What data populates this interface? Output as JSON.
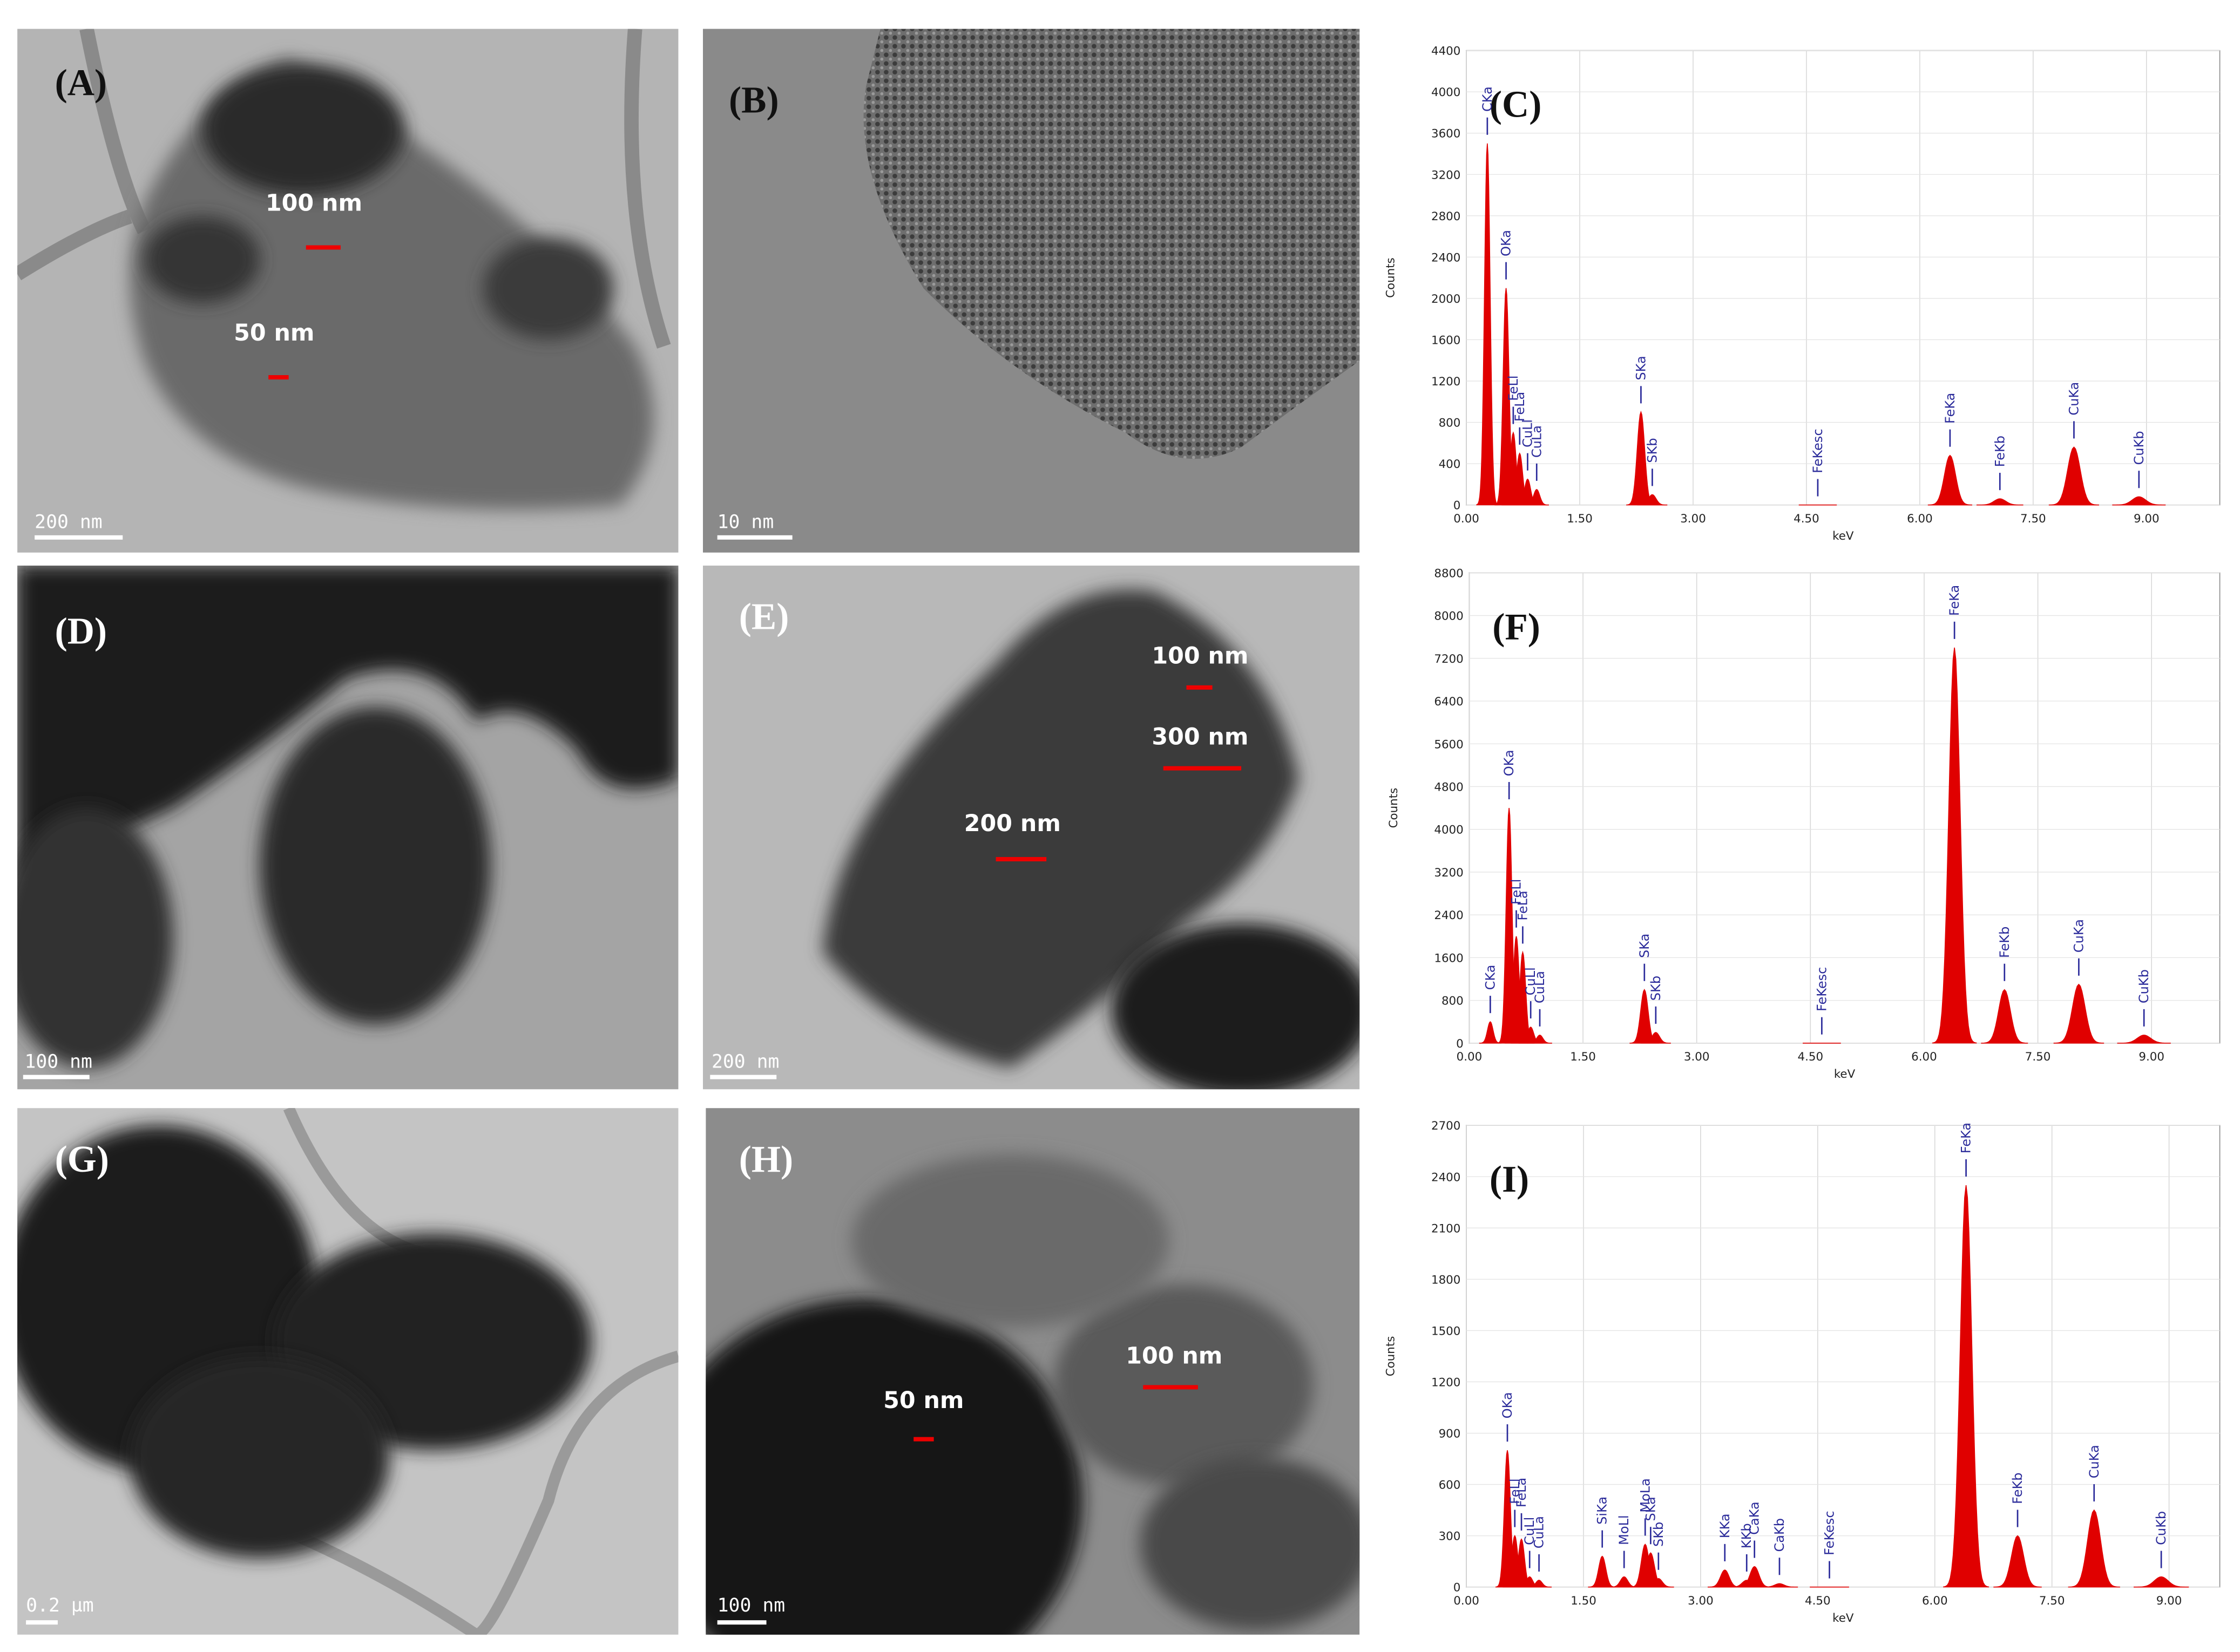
{
  "panels": [
    {
      "label": "(A)",
      "scale_bar": "200 nm",
      "annotations": [
        "100 nm",
        "50 nm"
      ]
    },
    {
      "label": "(B)",
      "scale_bar": "10 nm"
    },
    {
      "label": "(D)",
      "scale_bar": "100 nm"
    },
    {
      "label": "(E)",
      "scale_bar": "200 nm",
      "annotations": [
        "100 nm",
        "300 nm",
        "200 nm"
      ]
    },
    {
      "label": "(G)",
      "scale_bar": "0.2 µm"
    },
    {
      "label": "(H)",
      "scale_bar": "100 nm",
      "annotations": [
        "100 nm",
        "50 nm"
      ]
    }
  ],
  "spectra": [
    {
      "label": "(C)",
      "y_label": "Counts",
      "x_label": "keV",
      "color": "#e00000",
      "xlim": [
        0,
        9.97
      ],
      "ylim": [
        0,
        4400
      ],
      "xticks": [
        {
          "value": 0,
          "label": "0.00"
        },
        {
          "value": 1.5,
          "label": "1.50"
        },
        {
          "value": 3,
          "label": "3.00"
        },
        {
          "value": 4.5,
          "label": "4.50"
        },
        {
          "value": 6,
          "label": "6.00"
        },
        {
          "value": 7.5,
          "label": "7.50"
        },
        {
          "value": 9,
          "label": "9.00"
        }
      ],
      "yticks": [
        0,
        400,
        800,
        1200,
        1600,
        2000,
        2400,
        2800,
        3200,
        3600,
        4000,
        4400
      ],
      "peaks": [
        {
          "label": "CKa",
          "x": 0.277,
          "y": 3500
        },
        {
          "label": "OKa",
          "x": 0.525,
          "y": 2100
        },
        {
          "label": "FeLl",
          "x": 0.62,
          "y": 700
        },
        {
          "label": "FeLa",
          "x": 0.705,
          "y": 500
        },
        {
          "label": "CuLl",
          "x": 0.81,
          "y": 250
        },
        {
          "label": "CuLa",
          "x": 0.93,
          "y": 150
        },
        {
          "label": "SKa",
          "x": 2.31,
          "y": 900
        },
        {
          "label": "SKb",
          "x": 2.46,
          "y": 100
        },
        {
          "label": "FeKesc",
          "x": 4.65,
          "y": 0
        },
        {
          "label": "FeKa",
          "x": 6.4,
          "y": 480
        },
        {
          "label": "FeKb",
          "x": 7.06,
          "y": 60
        },
        {
          "label": "CuKa",
          "x": 8.04,
          "y": 560
        },
        {
          "label": "CuKb",
          "x": 8.9,
          "y": 80
        }
      ]
    },
    {
      "label": "(F)",
      "y_label": "Counts",
      "x_label": "keV",
      "color": "#e00000",
      "xlim": [
        0,
        9.9
      ],
      "ylim": [
        0,
        8800
      ],
      "xticks": [
        {
          "value": 0,
          "label": "0.00"
        },
        {
          "value": 1.5,
          "label": "1.50"
        },
        {
          "value": 3,
          "label": "3.00"
        },
        {
          "value": 4.5,
          "label": "4.50"
        },
        {
          "value": 6,
          "label": "6.00"
        },
        {
          "value": 7.5,
          "label": "7.50"
        },
        {
          "value": 9,
          "label": "9.00"
        }
      ],
      "yticks": [
        0,
        800,
        1600,
        2400,
        3200,
        4000,
        4800,
        5600,
        6400,
        7200,
        8000,
        8800
      ],
      "peaks": [
        {
          "label": "CKa",
          "x": 0.277,
          "y": 400
        },
        {
          "label": "OKa",
          "x": 0.525,
          "y": 4400
        },
        {
          "label": "FeLl",
          "x": 0.62,
          "y": 2000
        },
        {
          "label": "FeLa",
          "x": 0.705,
          "y": 1700
        },
        {
          "label": "CuLl",
          "x": 0.81,
          "y": 300
        },
        {
          "label": "CuLa",
          "x": 0.93,
          "y": 150
        },
        {
          "label": "SKa",
          "x": 2.31,
          "y": 1000
        },
        {
          "label": "SKb",
          "x": 2.46,
          "y": 200
        },
        {
          "label": "FeKesc",
          "x": 4.65,
          "y": 0
        },
        {
          "label": "FeKa",
          "x": 6.4,
          "y": 7400
        },
        {
          "label": "FeKb",
          "x": 7.06,
          "y": 1000
        },
        {
          "label": "CuKa",
          "x": 8.04,
          "y": 1100
        },
        {
          "label": "CuKb",
          "x": 8.9,
          "y": 150
        }
      ]
    },
    {
      "label": "(I)",
      "y_label": "Counts",
      "x_label": "keV",
      "color": "#e00000",
      "xlim": [
        0,
        9.65
      ],
      "ylim": [
        0,
        2700
      ],
      "xticks": [
        {
          "value": 0,
          "label": "0.00"
        },
        {
          "value": 1.5,
          "label": "1.50"
        },
        {
          "value": 3,
          "label": "3.00"
        },
        {
          "value": 4.5,
          "label": "4.50"
        },
        {
          "value": 6,
          "label": "6.00"
        },
        {
          "value": 7.5,
          "label": "7.50"
        },
        {
          "value": 9,
          "label": "9.00"
        }
      ],
      "yticks": [
        0,
        300,
        600,
        900,
        1200,
        1500,
        1800,
        2100,
        2400,
        2700
      ],
      "peaks": [
        {
          "label": "OKa",
          "x": 0.525,
          "y": 800
        },
        {
          "label": "FeLl",
          "x": 0.62,
          "y": 300
        },
        {
          "label": "FeLa",
          "x": 0.705,
          "y": 280
        },
        {
          "label": "CuLl",
          "x": 0.81,
          "y": 60
        },
        {
          "label": "CuLa",
          "x": 0.93,
          "y": 40
        },
        {
          "label": "SiKa",
          "x": 1.74,
          "y": 180
        },
        {
          "label": "MoLl",
          "x": 2.02,
          "y": 60
        },
        {
          "label": "MoLa",
          "x": 2.29,
          "y": 250
        },
        {
          "label": "SKa",
          "x": 2.36,
          "y": 200
        },
        {
          "label": "SKb",
          "x": 2.46,
          "y": 50
        },
        {
          "label": "KKa",
          "x": 3.31,
          "y": 100
        },
        {
          "label": "KKb",
          "x": 3.59,
          "y": 40
        },
        {
          "label": "CaKa",
          "x": 3.69,
          "y": 120
        },
        {
          "label": "CaKb",
          "x": 4.01,
          "y": 20
        },
        {
          "label": "FeKesc",
          "x": 4.65,
          "y": 0
        },
        {
          "label": "FeKa",
          "x": 6.4,
          "y": 2350
        },
        {
          "label": "FeKb",
          "x": 7.06,
          "y": 300
        },
        {
          "label": "CuKa",
          "x": 8.04,
          "y": 450
        },
        {
          "label": "CuKb",
          "x": 8.9,
          "y": 60
        }
      ]
    }
  ]
}
